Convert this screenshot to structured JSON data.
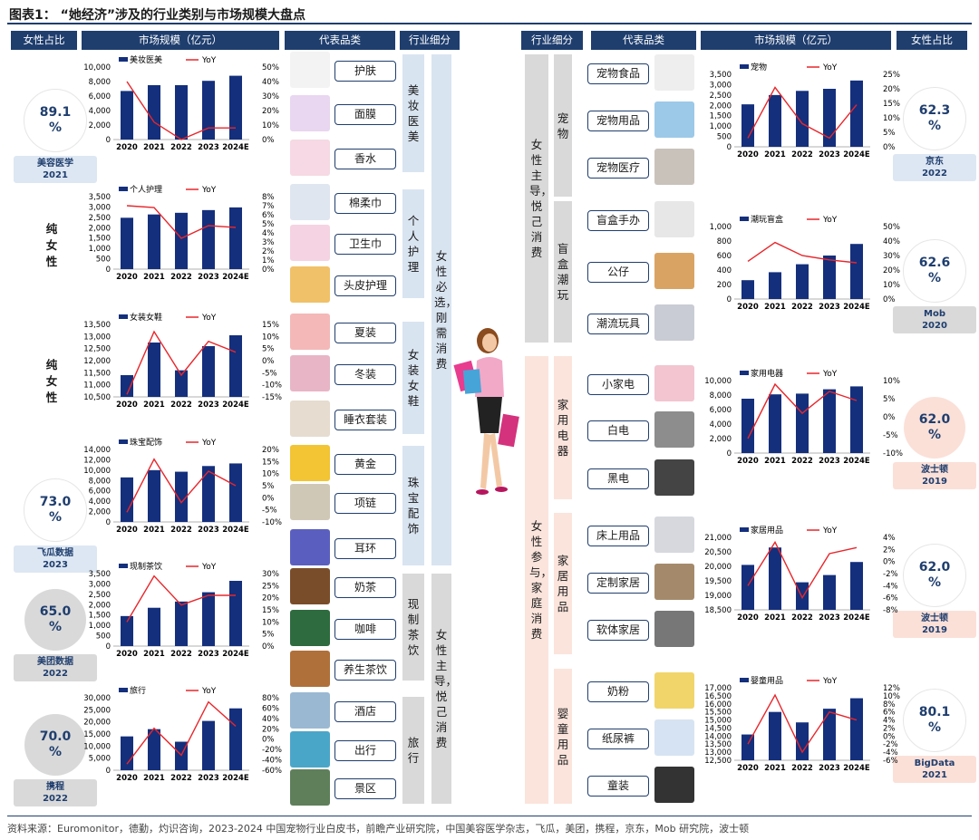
{
  "title": "图表1： “她经济”涉及的行业类别与市场规模大盘点",
  "footer": "资料来源：Euromonitor，德勤，灼识咨询，2023-2024 中国宠物行业白皮书，前瞻产业研究院，中国美容医学杂志，飞瓜，美团，携程，京东，Mob 研究院，波士顿",
  "headers_left": [
    "女性占比",
    "市场规模（亿元）",
    "代表品类",
    "行业细分"
  ],
  "headers_right": [
    "行业细分",
    "代表品类",
    "市场规模（亿元）",
    "女性占比"
  ],
  "colors": {
    "navy": "#1f3e6e",
    "bar": "#142f7c",
    "yoy": "#e8262b"
  },
  "left_sections": [
    {
      "name": "美妆医美",
      "items": [
        "护肤",
        "面膜",
        "香水"
      ],
      "stat": {
        "value": "89.1\n%",
        "source": "美容医学\n2021"
      }
    },
    {
      "name": "个人护理",
      "items": [
        "棉柔巾",
        "卫生巾",
        "头皮护理"
      ],
      "stat": {
        "value": "纯\n女\n性"
      }
    },
    {
      "name": "女装女鞋",
      "items": [
        "夏装",
        "冬装",
        "睡衣套装"
      ],
      "stat": {
        "value": "纯\n女\n性"
      }
    },
    {
      "name": "珠宝配饰",
      "items": [
        "黄金",
        "项链",
        "耳环"
      ],
      "stat": {
        "value": "73.0\n%",
        "source": "飞瓜数据\n2023"
      }
    },
    {
      "name": "现制茶饮",
      "items": [
        "奶茶",
        "咖啡",
        "养生茶饮"
      ],
      "stat": {
        "value": "65.0\n%",
        "source": "美团数据\n2022"
      }
    },
    {
      "name": "旅行",
      "items": [
        "酒店",
        "出行",
        "景区"
      ],
      "stat": {
        "value": "70.0\n%",
        "source": "携程\n2022"
      }
    }
  ],
  "left_groups": [
    "女性必选，刚需消费",
    "女性主导，悦己消费"
  ],
  "right_sections": [
    {
      "name": "宠物",
      "items": [
        "宠物食品",
        "宠物用品",
        "宠物医疗"
      ],
      "stat": {
        "value": "62.3\n%",
        "source": "京东\n2022"
      }
    },
    {
      "name": "盲盒潮玩",
      "items": [
        "盲盒手办",
        "公仔",
        "潮流玩具"
      ],
      "stat": {
        "value": "62.6\n%",
        "source": "Mob\n2020"
      }
    },
    {
      "name": "家用电器",
      "items": [
        "小家电",
        "白电",
        "黑电"
      ],
      "stat": {
        "value": "62.0\n%",
        "source": "波士顿\n2019"
      }
    },
    {
      "name": "家居用品",
      "items": [
        "床上用品",
        "定制家居",
        "软体家居"
      ],
      "stat": {
        "value": "62.0\n%",
        "source": "波士顿\n2019"
      }
    },
    {
      "name": "婴童用品",
      "items": [
        "奶粉",
        "纸尿裤",
        "童装"
      ],
      "stat": {
        "value": "80.1\n%",
        "source": "BigData\n2021"
      }
    }
  ],
  "right_groups": [
    "女性主导，悦己消费",
    "女性参与，家庭消费"
  ],
  "chart_data": [
    {
      "type": "bar",
      "title": "",
      "categories": [
        "2020",
        "2021",
        "2022",
        "2023",
        "2024E"
      ],
      "series": [
        {
          "name": "美妆医美",
          "values": [
            6700,
            7500,
            7500,
            8100,
            8800
          ]
        },
        {
          "name": "YoY",
          "values": [
            40,
            12,
            0,
            8,
            8
          ]
        }
      ],
      "ylim": [
        0,
        10000
      ],
      "yticks": [
        "0",
        "2,000",
        "4,000",
        "6,000",
        "8,000",
        "10,000"
      ],
      "y2lim": [
        0,
        50
      ],
      "y2ticks": [
        "0%",
        "10%",
        "20%",
        "30%",
        "40%",
        "50%"
      ]
    },
    {
      "type": "bar",
      "categories": [
        "2020",
        "2021",
        "2022",
        "2023",
        "2024E"
      ],
      "series": [
        {
          "name": "个人护理",
          "values": [
            2480,
            2640,
            2720,
            2850,
            2980
          ]
        },
        {
          "name": "YoY",
          "values": [
            7.0,
            6.8,
            3.4,
            4.8,
            4.6
          ]
        }
      ],
      "ylim": [
        0,
        3500
      ],
      "yticks": [
        "0",
        "500",
        "1,000",
        "1,500",
        "2,000",
        "2,500",
        "3,000",
        "3,500"
      ],
      "y2lim": [
        0,
        8
      ],
      "y2ticks": [
        "0%",
        "1%",
        "2%",
        "3%",
        "4%",
        "5%",
        "6%",
        "7%",
        "8%"
      ]
    },
    {
      "type": "bar",
      "categories": [
        "2020",
        "2021",
        "2022",
        "2023",
        "2024E"
      ],
      "series": [
        {
          "name": "女装女鞋",
          "values": [
            11400,
            12750,
            11600,
            12600,
            13050
          ]
        },
        {
          "name": "YoY",
          "values": [
            -14,
            12,
            -6,
            8,
            3.5
          ]
        }
      ],
      "ylim": [
        10500,
        13500
      ],
      "yticks": [
        "10,500",
        "11,000",
        "11,500",
        "12,000",
        "12,500",
        "13,000",
        "13,500"
      ],
      "y2lim": [
        -15,
        15
      ],
      "y2ticks": [
        "-15%",
        "-10%",
        "-5%",
        "0%",
        "5%",
        "10%",
        "15%"
      ]
    },
    {
      "type": "bar",
      "categories": [
        "2020",
        "2021",
        "2022",
        "2023",
        "2024E"
      ],
      "series": [
        {
          "name": "珠宝配饰",
          "values": [
            8600,
            10000,
            9700,
            10800,
            11300
          ]
        },
        {
          "name": "YoY",
          "values": [
            -6,
            16,
            -2,
            11,
            5
          ]
        }
      ],
      "ylim": [
        0,
        14000
      ],
      "yticks": [
        "0",
        "2,000",
        "4,000",
        "6,000",
        "8,000",
        "10,000",
        "12,000",
        "14,000"
      ],
      "y2lim": [
        -10,
        20
      ],
      "y2ticks": [
        "-10%",
        "-5%",
        "0%",
        "5%",
        "10%",
        "15%",
        "20%"
      ]
    },
    {
      "type": "bar",
      "categories": [
        "2020",
        "2021",
        "2022",
        "2023",
        "2024E"
      ],
      "series": [
        {
          "name": "现制茶饮",
          "values": [
            1450,
            1850,
            2150,
            2600,
            3150
          ]
        },
        {
          "name": "YoY",
          "values": [
            10,
            29,
            17,
            21,
            21
          ]
        }
      ],
      "ylim": [
        0,
        3500
      ],
      "yticks": [
        "0",
        "500",
        "1,000",
        "1,500",
        "2,000",
        "2,500",
        "3,000",
        "3,500"
      ],
      "y2lim": [
        0,
        30
      ],
      "y2ticks": [
        "0%",
        "5%",
        "10%",
        "15%",
        "20%",
        "25%",
        "30%"
      ]
    },
    {
      "type": "bar",
      "categories": [
        "2020",
        "2021",
        "2022",
        "2023",
        "2024E"
      ],
      "series": [
        {
          "name": "旅行",
          "values": [
            14000,
            17000,
            11800,
            20400,
            25600
          ]
        },
        {
          "name": "YoY",
          "values": [
            -48,
            21,
            -31,
            72,
            25
          ]
        }
      ],
      "ylim": [
        0,
        30000
      ],
      "yticks": [
        "0",
        "5,000",
        "10,000",
        "15,000",
        "20,000",
        "25,000",
        "30,000"
      ],
      "y2lim": [
        -60,
        80
      ],
      "y2ticks": [
        "-60%",
        "-40%",
        "-20%",
        "0%",
        "20%",
        "40%",
        "60%",
        "80%"
      ]
    },
    {
      "type": "bar",
      "categories": [
        "2020",
        "2021",
        "2022",
        "2023",
        "2024E"
      ],
      "series": [
        {
          "name": "宠物",
          "values": [
            2050,
            2500,
            2700,
            2800,
            3200
          ]
        },
        {
          "name": "YoY",
          "values": [
            3,
            20.5,
            8,
            3,
            14.5
          ]
        }
      ],
      "ylim": [
        0,
        3500
      ],
      "yticks": [
        "0",
        "500",
        "1,000",
        "1,500",
        "2,000",
        "2,500",
        "3,000",
        "3,500"
      ],
      "y2lim": [
        0,
        25
      ],
      "y2ticks": [
        "0%",
        "5%",
        "10%",
        "15%",
        "20%",
        "25%"
      ]
    },
    {
      "type": "bar",
      "categories": [
        "2020",
        "2021",
        "2022",
        "2023",
        "2024E"
      ],
      "series": [
        {
          "name": "潮玩盲盒",
          "values": [
            260,
            370,
            480,
            600,
            760
          ]
        },
        {
          "name": "YoY",
          "values": [
            26,
            39,
            30,
            27,
            25
          ]
        }
      ],
      "ylim": [
        0,
        1000
      ],
      "yticks": [
        "0",
        "200",
        "400",
        "600",
        "800",
        "1,000"
      ],
      "y2lim": [
        0,
        50
      ],
      "y2ticks": [
        "0%",
        "10%",
        "20%",
        "30%",
        "40%",
        "50%"
      ]
    },
    {
      "type": "bar",
      "categories": [
        "2020",
        "2021",
        "2022",
        "2023",
        "2024E"
      ],
      "series": [
        {
          "name": "家用电器",
          "values": [
            7500,
            8100,
            8200,
            8800,
            9200
          ]
        },
        {
          "name": "YoY",
          "values": [
            -6,
            9,
            1,
            7,
            4.5
          ]
        }
      ],
      "ylim": [
        0,
        10000
      ],
      "yticks": [
        "0",
        "2,000",
        "4,000",
        "6,000",
        "8,000",
        "10,000"
      ],
      "y2lim": [
        -10,
        10
      ],
      "y2ticks": [
        "-10%",
        "-5%",
        "0%",
        "5%",
        "10%"
      ]
    },
    {
      "type": "bar",
      "categories": [
        "2020",
        "2021",
        "2022",
        "2023",
        "2024E"
      ],
      "series": [
        {
          "name": "家居用品",
          "values": [
            20050,
            20650,
            19450,
            19700,
            20150
          ]
        },
        {
          "name": "YoY",
          "values": [
            -4,
            3.2,
            -6,
            1.3,
            2.3
          ]
        }
      ],
      "ylim": [
        18500,
        21000
      ],
      "yticks": [
        "18,500",
        "19,000",
        "19,500",
        "20,000",
        "20,500",
        "21,000"
      ],
      "y2lim": [
        -8,
        4
      ],
      "y2ticks": [
        "-8%",
        "-6%",
        "-4%",
        "-2%",
        "0%",
        "2%",
        "4%"
      ]
    },
    {
      "type": "bar",
      "categories": [
        "2020",
        "2021",
        "2022",
        "2023",
        "2024E"
      ],
      "series": [
        {
          "name": "婴童用品",
          "values": [
            14100,
            15500,
            14850,
            15700,
            16350
          ]
        },
        {
          "name": "YoY",
          "values": [
            -2,
            10.2,
            -4,
            6,
            4
          ]
        }
      ],
      "ylim": [
        12500,
        17000
      ],
      "yticks": [
        "12,500",
        "13,000",
        "13,500",
        "14,000",
        "14,500",
        "15,000",
        "15,500",
        "16,000",
        "16,500",
        "17,000"
      ],
      "y2lim": [
        -6,
        12
      ],
      "y2ticks": [
        "-6%",
        "-4%",
        "-2%",
        "0%",
        "2%",
        "4%",
        "6%",
        "8%",
        "10%",
        "12%"
      ]
    }
  ]
}
